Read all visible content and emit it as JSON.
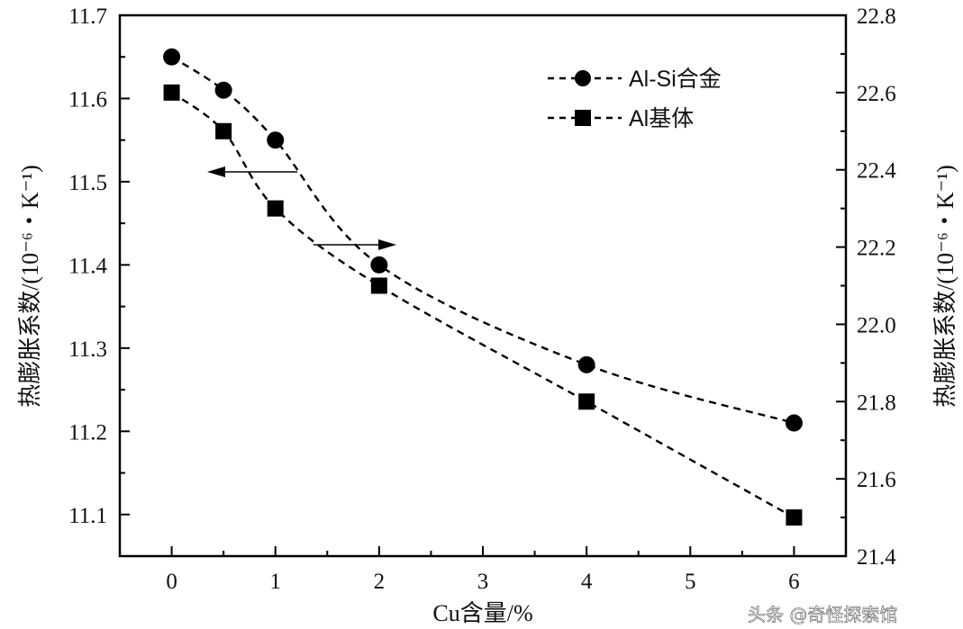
{
  "chart_data": {
    "type": "line",
    "xlabel": "Cu含量/%",
    "ylabel_left": "热膨胀系数/(10⁻⁶・K⁻¹)",
    "ylabel_right": "热膨胀系数/(10⁻⁶・K⁻¹)",
    "xlim": [
      -0.5,
      6.5
    ],
    "ylim_left": [
      11.05,
      11.7
    ],
    "ylim_right": [
      21.4,
      22.8
    ],
    "x_ticks": [
      "0",
      "1",
      "2",
      "3",
      "4",
      "5",
      "6"
    ],
    "y_ticks_left": [
      "11.1",
      "11.2",
      "11.3",
      "11.4",
      "11.5",
      "11.6",
      "11.7"
    ],
    "y_ticks_right": [
      "21.4",
      "21.6",
      "21.8",
      "22.0",
      "22.2",
      "22.4",
      "22.6",
      "22.8"
    ],
    "grid": false,
    "legend_position": "top-right",
    "series": [
      {
        "name": "Al-Si合金",
        "marker": "circle",
        "line": "dashed",
        "axis": "left",
        "color": "#000000",
        "x": [
          0,
          0.5,
          1,
          2,
          4,
          6
        ],
        "values": [
          11.65,
          11.61,
          11.55,
          11.4,
          11.28,
          11.21
        ]
      },
      {
        "name": "Al基体",
        "marker": "square",
        "line": "dashed",
        "axis": "right",
        "color": "#000000",
        "x": [
          0,
          0.5,
          1,
          2,
          4,
          6
        ],
        "values": [
          22.6,
          22.5,
          22.3,
          22.1,
          21.8,
          21.5
        ]
      }
    ]
  },
  "watermark": "头条 @奇怪探索馆"
}
